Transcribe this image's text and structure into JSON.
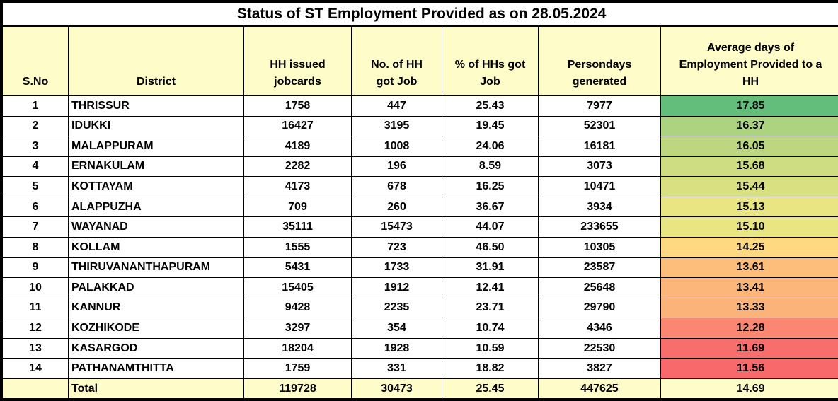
{
  "title": "Status of ST Employment Provided as on 28.05.2024",
  "colors": {
    "header_fill": "#FEFCC9",
    "total_fill": "#FEFCC9",
    "border": "#000000",
    "scale_max_green": "#63BE7B",
    "scale_mid_yellow": "#FFEB84",
    "scale_min_red": "#F8696B"
  },
  "table": {
    "columns": [
      {
        "key": "sno",
        "label": "S.No"
      },
      {
        "key": "district",
        "label": "District"
      },
      {
        "key": "hh_issued_jobcards",
        "label": "HH issued\njobcards"
      },
      {
        "key": "hh_got_job",
        "label": "No. of HH\ngot Job"
      },
      {
        "key": "pct_hhs_got_job",
        "label": "% of HHs got\nJob"
      },
      {
        "key": "persondays",
        "label": "Persondays\ngenerated"
      },
      {
        "key": "avg_days",
        "label": "Average days of\nEmployment Provided to a\nHH"
      }
    ],
    "rows": [
      {
        "sno": "1",
        "district": "THRISSUR",
        "hh_issued_jobcards": "1758",
        "hh_got_job": "447",
        "pct_hhs_got_job": "25.43",
        "persondays": "7977",
        "avg_days": "17.85",
        "avg_days_color": "#63BE7B"
      },
      {
        "sno": "2",
        "district": "IDUKKI",
        "hh_issued_jobcards": "16427",
        "hh_got_job": "3195",
        "pct_hhs_got_job": "19.45",
        "persondays": "52301",
        "avg_days": "16.37",
        "avg_days_color": "#ACD37F"
      },
      {
        "sno": "3",
        "district": "MALAPPURAM",
        "hh_issued_jobcards": "4189",
        "hh_got_job": "1008",
        "pct_hhs_got_job": "24.06",
        "persondays": "16181",
        "avg_days": "16.05",
        "avg_days_color": "#BCD780"
      },
      {
        "sno": "4",
        "district": "ERNAKULAM",
        "hh_issued_jobcards": "2282",
        "hh_got_job": "196",
        "pct_hhs_got_job": "8.59",
        "persondays": "3073",
        "avg_days": "15.68",
        "avg_days_color": "#CEDD81"
      },
      {
        "sno": "5",
        "district": "KOTTAYAM",
        "hh_issued_jobcards": "4173",
        "hh_got_job": "678",
        "pct_hhs_got_job": "16.25",
        "persondays": "10471",
        "avg_days": "15.44",
        "avg_days_color": "#D9E082"
      },
      {
        "sno": "6",
        "district": "ALAPPUZHA",
        "hh_issued_jobcards": "709",
        "hh_got_job": "260",
        "pct_hhs_got_job": "36.67",
        "persondays": "3934",
        "avg_days": "15.13",
        "avg_days_color": "#E9E583"
      },
      {
        "sno": "7",
        "district": "WAYANAD",
        "hh_issued_jobcards": "35111",
        "hh_got_job": "15473",
        "pct_hhs_got_job": "44.07",
        "persondays": "233655",
        "avg_days": "15.10",
        "avg_days_color": "#EAE583"
      },
      {
        "sno": "8",
        "district": "KOLLAM",
        "hh_issued_jobcards": "1555",
        "hh_got_job": "723",
        "pct_hhs_got_job": "46.50",
        "persondays": "10305",
        "avg_days": "14.25",
        "avg_days_color": "#FED981"
      },
      {
        "sno": "9",
        "district": "THIRUVANANTHAPURAM",
        "hh_issued_jobcards": "5431",
        "hh_got_job": "1733",
        "pct_hhs_got_job": "31.91",
        "persondays": "23587",
        "avg_days": "13.61",
        "avg_days_color": "#FDBE7C"
      },
      {
        "sno": "10",
        "district": "PALAKKAD",
        "hh_issued_jobcards": "15405",
        "hh_got_job": "1912",
        "pct_hhs_got_job": "12.41",
        "persondays": "25648",
        "avg_days": "13.41",
        "avg_days_color": "#FCB67A"
      },
      {
        "sno": "11",
        "district": "KANNUR",
        "hh_issued_jobcards": "9428",
        "hh_got_job": "2235",
        "pct_hhs_got_job": "23.71",
        "persondays": "29790",
        "avg_days": "13.33",
        "avg_days_color": "#FCB379"
      },
      {
        "sno": "12",
        "district": "KOZHIKODE",
        "hh_issued_jobcards": "3297",
        "hh_got_job": "354",
        "pct_hhs_got_job": "10.74",
        "persondays": "4346",
        "avg_days": "12.28",
        "avg_days_color": "#FA8771"
      },
      {
        "sno": "13",
        "district": "KASARGOD",
        "hh_issued_jobcards": "18204",
        "hh_got_job": "1928",
        "pct_hhs_got_job": "10.59",
        "persondays": "22530",
        "avg_days": "11.69",
        "avg_days_color": "#F86E6C"
      },
      {
        "sno": "14",
        "district": "PATHANAMTHITTA",
        "hh_issued_jobcards": "1759",
        "hh_got_job": "331",
        "pct_hhs_got_job": "18.82",
        "persondays": "3827",
        "avg_days": "11.56",
        "avg_days_color": "#F8696B"
      }
    ],
    "total": {
      "sno": "",
      "district": "Total",
      "hh_issued_jobcards": "119728",
      "hh_got_job": "30473",
      "pct_hhs_got_job": "25.45",
      "persondays": "447625",
      "avg_days": "14.69"
    }
  }
}
